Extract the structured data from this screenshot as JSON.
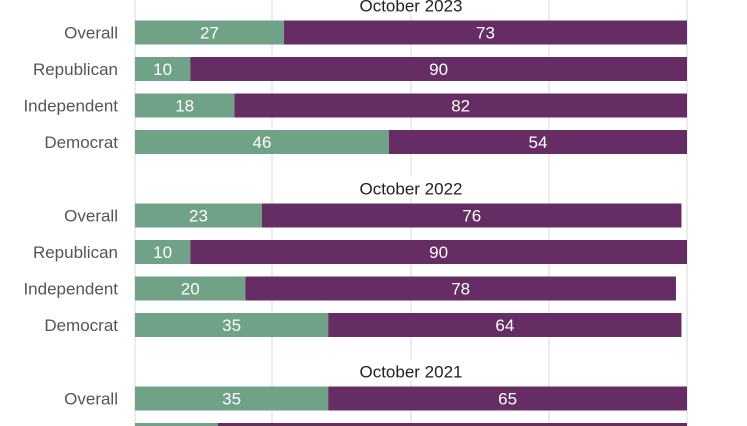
{
  "chart_data": {
    "type": "bar",
    "stacked": true,
    "orientation": "horizontal",
    "xlim": [
      0,
      100
    ],
    "grid": true,
    "series_colors": [
      "#6fa287",
      "#652d64"
    ],
    "groups": [
      {
        "title": "October 2023",
        "categories": [
          "Overall",
          "Republican",
          "Independent",
          "Democrat"
        ],
        "series": [
          {
            "values": [
              27,
              10,
              18,
              46
            ]
          },
          {
            "values": [
              73,
              90,
              82,
              54
            ]
          }
        ]
      },
      {
        "title": "October 2022",
        "categories": [
          "Overall",
          "Republican",
          "Independent",
          "Democrat"
        ],
        "series": [
          {
            "values": [
              23,
              10,
              20,
              35
            ]
          },
          {
            "values": [
              76,
              90,
              78,
              64
            ]
          }
        ]
      },
      {
        "title": "October 2021",
        "categories": [
          "Overall",
          ""
        ],
        "series": [
          {
            "values": [
              35,
              15
            ]
          },
          {
            "values": [
              65,
              85
            ]
          }
        ]
      }
    ]
  }
}
